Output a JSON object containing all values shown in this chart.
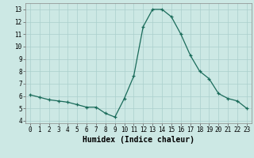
{
  "x": [
    0,
    1,
    2,
    3,
    4,
    5,
    6,
    7,
    8,
    9,
    10,
    11,
    12,
    13,
    14,
    15,
    16,
    17,
    18,
    19,
    20,
    21,
    22,
    23
  ],
  "y": [
    6.1,
    5.9,
    5.7,
    5.6,
    5.5,
    5.3,
    5.1,
    5.1,
    4.6,
    4.3,
    5.8,
    7.6,
    11.6,
    13.0,
    13.0,
    12.4,
    11.0,
    9.3,
    8.0,
    7.4,
    6.2,
    5.8,
    5.6,
    5.0
  ],
  "xlabel": "Humidex (Indice chaleur)",
  "xlim": [
    -0.5,
    23.5
  ],
  "ylim": [
    3.8,
    13.5
  ],
  "yticks": [
    4,
    5,
    6,
    7,
    8,
    9,
    10,
    11,
    12,
    13
  ],
  "xticks": [
    0,
    1,
    2,
    3,
    4,
    5,
    6,
    7,
    8,
    9,
    10,
    11,
    12,
    13,
    14,
    15,
    16,
    17,
    18,
    19,
    20,
    21,
    22,
    23
  ],
  "line_color": "#1a6b5a",
  "marker": "+",
  "bg_color": "#cce8e4",
  "grid_color": "#aacfcc",
  "tick_fontsize": 5.5,
  "label_fontsize": 7.0,
  "linewidth": 0.9,
  "markersize": 3.5,
  "markeredgewidth": 0.9
}
